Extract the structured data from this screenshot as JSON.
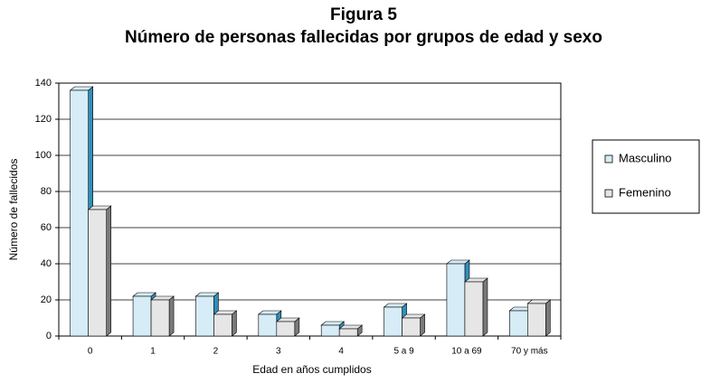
{
  "chart_data": {
    "type": "bar",
    "title": "Figura 5",
    "subtitle": "Número de personas fallecidas por grupos de edad y sexo",
    "xlabel": "Edad en años cumplidos",
    "ylabel": "Número de fallecidos",
    "categories": [
      "0",
      "1",
      "2",
      "3",
      "4",
      "5 a 9",
      "10 a 69",
      "70 y más"
    ],
    "series": [
      {
        "name": "Masculino",
        "color": "#d6ecf7",
        "side": "#2f8fba",
        "values": [
          136,
          22,
          22,
          12,
          6,
          16,
          40,
          14
        ]
      },
      {
        "name": "Femenino",
        "color": "#e6e6e6",
        "side": "#7a7a7a",
        "values": [
          70,
          20,
          12,
          8,
          4,
          10,
          30,
          18
        ]
      }
    ],
    "ylim": [
      0,
      140
    ],
    "yticks": [
      0,
      20,
      40,
      60,
      80,
      100,
      120,
      140
    ],
    "grid": true,
    "legend": "right"
  }
}
